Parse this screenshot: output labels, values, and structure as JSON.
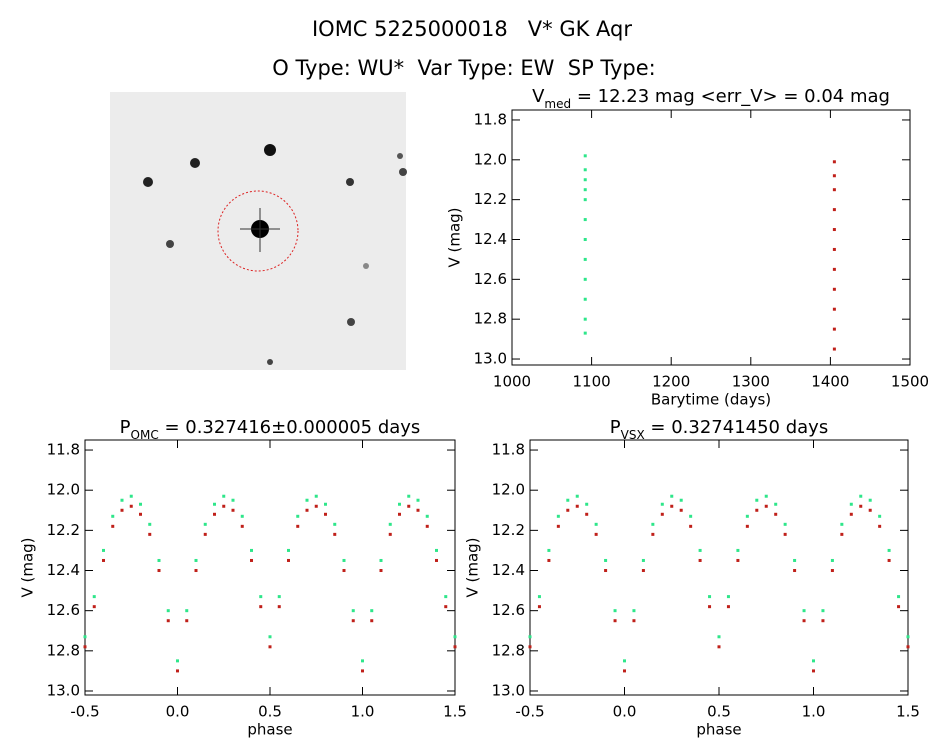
{
  "header": {
    "title": "IOMC 5225000018   V* GK Aqr",
    "subtitle": "O Type: WU*  Var Type: EW  SP Type:"
  },
  "chart_data": [
    {
      "type": "scatter",
      "title": [
        {
          "text": "V"
        },
        {
          "text": "med",
          "sub": true
        },
        {
          "text": " = 12.23 mag <err_V> = 0.04 mag"
        }
      ],
      "xlabel": "Barytime (days)",
      "ylabel": "V (mag)",
      "xlim": [
        1000,
        1500
      ],
      "xticks": [
        1000,
        1100,
        1200,
        1300,
        1400,
        1500
      ],
      "ylim": [
        13.03,
        11.75
      ],
      "yticks": [
        11.8,
        {
          "value": 12,
          "label": "12.0"
        },
        12.2,
        12.4,
        12.6,
        12.8,
        {
          "value": 13,
          "label": "13.0"
        }
      ],
      "series": [
        {
          "color": "#2ee68a",
          "x": [
            1092,
            1092,
            1092,
            1092,
            1092,
            1092,
            1092,
            1092,
            1092,
            1092,
            1092,
            1092
          ],
          "values": [
            11.98,
            12.05,
            12.1,
            12.15,
            12.2,
            12.3,
            12.4,
            12.5,
            12.6,
            12.7,
            12.8,
            12.87
          ]
        },
        {
          "color": "#c0201a",
          "x": [
            1405,
            1405,
            1405,
            1405,
            1405,
            1405,
            1405,
            1405,
            1405,
            1405,
            1405
          ],
          "values": [
            12.01,
            12.08,
            12.15,
            12.25,
            12.35,
            12.45,
            12.55,
            12.65,
            12.75,
            12.85,
            12.95
          ]
        }
      ]
    },
    {
      "type": "scatter",
      "title": [
        {
          "text": "P"
        },
        {
          "text": "OMC",
          "sub": true
        },
        {
          "text": " = 0.327416±0.000005 days"
        }
      ],
      "xlabel": "phase",
      "ylabel": "V (mag)",
      "xlim": [
        -0.5,
        1.5
      ],
      "xticks": [
        -0.5,
        {
          "value": 0,
          "label": "0.0"
        },
        0.5,
        {
          "value": 1,
          "label": "1.0"
        },
        1.5
      ],
      "ylim": [
        13.02,
        11.75
      ],
      "yticks": [
        11.8,
        {
          "value": 12,
          "label": "12.0"
        },
        12.2,
        12.4,
        12.6,
        12.8,
        {
          "value": 13,
          "label": "13.0"
        }
      ],
      "series": [
        {
          "color": "#2ee68a",
          "x": [
            -0.5,
            -0.45,
            -0.4,
            -0.35,
            -0.3,
            -0.25,
            -0.2,
            -0.15,
            -0.1,
            -0.05,
            0,
            0.05,
            0.1,
            0.15,
            0.2,
            0.25,
            0.3,
            0.35,
            0.4,
            0.45,
            0.5,
            0.55,
            0.6,
            0.65,
            0.7,
            0.75,
            0.8,
            0.85,
            0.9,
            0.95,
            1,
            1.05,
            1.1,
            1.15,
            1.2,
            1.25,
            1.3,
            1.35,
            1.4,
            1.45,
            1.5
          ],
          "values": [
            12.73,
            12.53,
            12.3,
            12.13,
            12.05,
            12.03,
            12.07,
            12.17,
            12.35,
            12.6,
            12.85,
            12.6,
            12.35,
            12.17,
            12.07,
            12.03,
            12.05,
            12.13,
            12.3,
            12.53,
            12.73,
            12.53,
            12.3,
            12.13,
            12.05,
            12.03,
            12.07,
            12.17,
            12.35,
            12.6,
            12.85,
            12.6,
            12.35,
            12.17,
            12.07,
            12.03,
            12.05,
            12.13,
            12.3,
            12.53,
            12.73
          ]
        },
        {
          "color": "#c0201a",
          "x": [
            -0.5,
            -0.45,
            -0.4,
            -0.35,
            -0.3,
            -0.25,
            -0.2,
            -0.15,
            -0.1,
            -0.05,
            0,
            0.05,
            0.1,
            0.15,
            0.2,
            0.25,
            0.3,
            0.35,
            0.4,
            0.45,
            0.5,
            0.55,
            0.6,
            0.65,
            0.7,
            0.75,
            0.8,
            0.85,
            0.9,
            0.95,
            1,
            1.05,
            1.1,
            1.15,
            1.2,
            1.25,
            1.3,
            1.35,
            1.4,
            1.45,
            1.5
          ],
          "values": [
            12.78,
            12.58,
            12.35,
            12.18,
            12.1,
            12.08,
            12.12,
            12.22,
            12.4,
            12.65,
            12.9,
            12.65,
            12.4,
            12.22,
            12.12,
            12.08,
            12.1,
            12.18,
            12.35,
            12.58,
            12.78,
            12.58,
            12.35,
            12.18,
            12.1,
            12.08,
            12.12,
            12.22,
            12.4,
            12.65,
            12.9,
            12.65,
            12.4,
            12.22,
            12.12,
            12.08,
            12.1,
            12.18,
            12.35,
            12.58,
            12.78
          ]
        }
      ]
    },
    {
      "type": "scatter",
      "title": [
        {
          "text": "P"
        },
        {
          "text": "VSX",
          "sub": true
        },
        {
          "text": " = 0.32741450 days"
        }
      ],
      "xlabel": "phase",
      "ylabel": "V (mag)",
      "xlim": [
        -0.5,
        1.5
      ],
      "xticks": [
        -0.5,
        {
          "value": 0,
          "label": "0.0"
        },
        0.5,
        {
          "value": 1,
          "label": "1.0"
        },
        1.5
      ],
      "ylim": [
        13.02,
        11.75
      ],
      "yticks": [
        11.8,
        {
          "value": 12,
          "label": "12.0"
        },
        12.2,
        12.4,
        12.6,
        12.8,
        {
          "value": 13,
          "label": "13.0"
        }
      ],
      "series": [
        {
          "color": "#2ee68a",
          "x": [
            -0.5,
            -0.45,
            -0.4,
            -0.35,
            -0.3,
            -0.25,
            -0.2,
            -0.15,
            -0.1,
            -0.05,
            0,
            0.05,
            0.1,
            0.15,
            0.2,
            0.25,
            0.3,
            0.35,
            0.4,
            0.45,
            0.5,
            0.55,
            0.6,
            0.65,
            0.7,
            0.75,
            0.8,
            0.85,
            0.9,
            0.95,
            1,
            1.05,
            1.1,
            1.15,
            1.2,
            1.25,
            1.3,
            1.35,
            1.4,
            1.45,
            1.5
          ],
          "values": [
            12.73,
            12.53,
            12.3,
            12.13,
            12.05,
            12.03,
            12.07,
            12.17,
            12.35,
            12.6,
            12.85,
            12.6,
            12.35,
            12.17,
            12.07,
            12.03,
            12.05,
            12.13,
            12.3,
            12.53,
            12.73,
            12.53,
            12.3,
            12.13,
            12.05,
            12.03,
            12.07,
            12.17,
            12.35,
            12.6,
            12.85,
            12.6,
            12.35,
            12.17,
            12.07,
            12.03,
            12.05,
            12.13,
            12.3,
            12.53,
            12.73
          ]
        },
        {
          "color": "#c0201a",
          "x": [
            -0.5,
            -0.45,
            -0.4,
            -0.35,
            -0.3,
            -0.25,
            -0.2,
            -0.15,
            -0.1,
            -0.05,
            0,
            0.05,
            0.1,
            0.15,
            0.2,
            0.25,
            0.3,
            0.35,
            0.4,
            0.45,
            0.5,
            0.55,
            0.6,
            0.65,
            0.7,
            0.75,
            0.8,
            0.85,
            0.9,
            0.95,
            1,
            1.05,
            1.1,
            1.15,
            1.2,
            1.25,
            1.3,
            1.35,
            1.4,
            1.45,
            1.5
          ],
          "values": [
            12.78,
            12.58,
            12.35,
            12.18,
            12.1,
            12.08,
            12.12,
            12.22,
            12.4,
            12.65,
            12.9,
            12.65,
            12.4,
            12.22,
            12.12,
            12.08,
            12.1,
            12.18,
            12.35,
            12.58,
            12.78,
            12.58,
            12.35,
            12.18,
            12.1,
            12.08,
            12.12,
            12.22,
            12.4,
            12.65,
            12.9,
            12.65,
            12.4,
            12.22,
            12.12,
            12.08,
            12.1,
            12.18,
            12.35,
            12.58,
            12.78
          ]
        }
      ]
    }
  ]
}
